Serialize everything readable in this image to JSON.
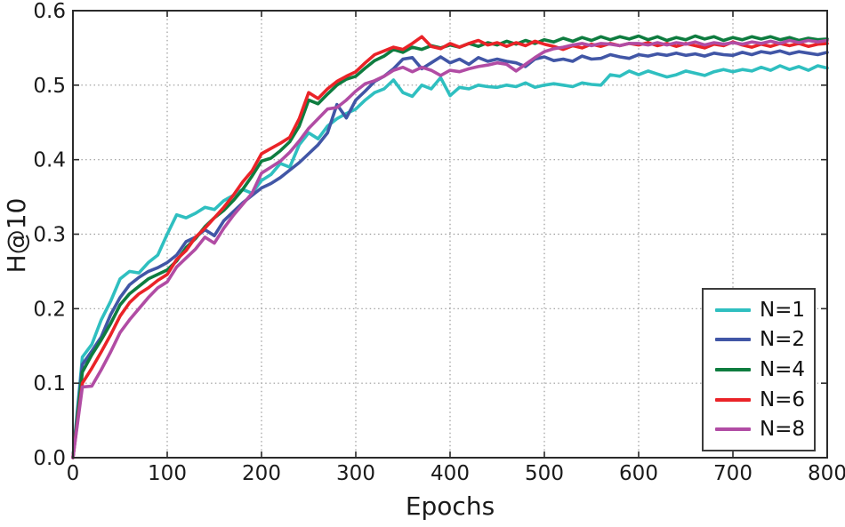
{
  "chart_data": {
    "type": "line",
    "title": "",
    "xlabel": "Epochs",
    "ylabel": "H@10",
    "xlim": [
      0,
      800
    ],
    "ylim": [
      0.0,
      0.6
    ],
    "x_ticks": [
      0,
      100,
      200,
      300,
      400,
      500,
      600,
      700,
      800
    ],
    "x_tick_labels": [
      "0",
      "100",
      "200",
      "300",
      "400",
      "500",
      "600",
      "700",
      "800"
    ],
    "y_ticks": [
      0.0,
      0.1,
      0.2,
      0.3,
      0.4,
      0.5,
      0.6
    ],
    "y_tick_labels": [
      "0.0",
      "0.1",
      "0.2",
      "0.3",
      "0.4",
      "0.5",
      "0.6"
    ],
    "grid": "dotted",
    "legend_position": "lower right",
    "axis_color": "#2b2b2b",
    "grid_color": "#9a9a9a",
    "epochs": [
      0,
      10,
      20,
      30,
      40,
      50,
      60,
      70,
      80,
      90,
      100,
      110,
      120,
      130,
      140,
      150,
      160,
      170,
      180,
      190,
      200,
      210,
      220,
      230,
      240,
      250,
      260,
      270,
      280,
      290,
      300,
      310,
      320,
      330,
      340,
      350,
      360,
      370,
      380,
      390,
      400,
      410,
      420,
      430,
      440,
      450,
      460,
      470,
      480,
      490,
      500,
      510,
      520,
      530,
      540,
      550,
      560,
      570,
      580,
      590,
      600,
      610,
      620,
      630,
      640,
      650,
      660,
      670,
      680,
      690,
      700,
      710,
      720,
      730,
      740,
      750,
      760,
      770,
      780,
      790,
      800
    ],
    "series": [
      {
        "name": "N=1",
        "color": "#2fbfc0",
        "values": [
          0.0,
          0.135,
          0.152,
          0.185,
          0.21,
          0.24,
          0.25,
          0.248,
          0.262,
          0.272,
          0.3,
          0.326,
          0.322,
          0.328,
          0.336,
          0.333,
          0.345,
          0.352,
          0.36,
          0.355,
          0.372,
          0.38,
          0.395,
          0.39,
          0.42,
          0.436,
          0.428,
          0.445,
          0.455,
          0.462,
          0.468,
          0.48,
          0.49,
          0.495,
          0.507,
          0.49,
          0.485,
          0.5,
          0.495,
          0.51,
          0.486,
          0.497,
          0.495,
          0.5,
          0.498,
          0.497,
          0.5,
          0.498,
          0.503,
          0.497,
          0.5,
          0.502,
          0.5,
          0.498,
          0.503,
          0.501,
          0.5,
          0.514,
          0.512,
          0.519,
          0.514,
          0.519,
          0.515,
          0.511,
          0.514,
          0.519,
          0.516,
          0.513,
          0.518,
          0.521,
          0.518,
          0.521,
          0.519,
          0.524,
          0.52,
          0.526,
          0.521,
          0.525,
          0.52,
          0.526,
          0.523
        ]
      },
      {
        "name": "N=2",
        "color": "#4156a6",
        "values": [
          0.0,
          0.125,
          0.143,
          0.162,
          0.192,
          0.215,
          0.232,
          0.242,
          0.25,
          0.255,
          0.262,
          0.272,
          0.29,
          0.296,
          0.306,
          0.298,
          0.318,
          0.33,
          0.342,
          0.352,
          0.362,
          0.368,
          0.376,
          0.386,
          0.396,
          0.408,
          0.42,
          0.436,
          0.474,
          0.456,
          0.48,
          0.492,
          0.505,
          0.512,
          0.522,
          0.535,
          0.537,
          0.522,
          0.53,
          0.538,
          0.53,
          0.535,
          0.528,
          0.537,
          0.532,
          0.535,
          0.532,
          0.53,
          0.525,
          0.535,
          0.538,
          0.533,
          0.535,
          0.532,
          0.539,
          0.535,
          0.536,
          0.541,
          0.538,
          0.536,
          0.541,
          0.539,
          0.542,
          0.54,
          0.543,
          0.54,
          0.542,
          0.539,
          0.543,
          0.541,
          0.54,
          0.544,
          0.541,
          0.545,
          0.543,
          0.546,
          0.542,
          0.545,
          0.543,
          0.541,
          0.544
        ]
      },
      {
        "name": "N=4",
        "color": "#0e7c3f",
        "values": [
          0.0,
          0.115,
          0.138,
          0.158,
          0.18,
          0.205,
          0.22,
          0.23,
          0.24,
          0.246,
          0.252,
          0.264,
          0.282,
          0.294,
          0.31,
          0.322,
          0.332,
          0.345,
          0.36,
          0.378,
          0.398,
          0.402,
          0.412,
          0.424,
          0.445,
          0.48,
          0.475,
          0.488,
          0.5,
          0.508,
          0.512,
          0.523,
          0.533,
          0.539,
          0.548,
          0.544,
          0.551,
          0.548,
          0.553,
          0.55,
          0.554,
          0.551,
          0.556,
          0.552,
          0.557,
          0.554,
          0.559,
          0.555,
          0.56,
          0.556,
          0.561,
          0.558,
          0.563,
          0.559,
          0.564,
          0.56,
          0.565,
          0.561,
          0.565,
          0.562,
          0.566,
          0.561,
          0.565,
          0.56,
          0.564,
          0.561,
          0.566,
          0.562,
          0.565,
          0.56,
          0.564,
          0.561,
          0.565,
          0.562,
          0.565,
          0.561,
          0.564,
          0.56,
          0.563,
          0.561,
          0.562
        ]
      },
      {
        "name": "N=6",
        "color": "#ea2328",
        "values": [
          0.0,
          0.1,
          0.12,
          0.142,
          0.165,
          0.19,
          0.208,
          0.22,
          0.228,
          0.238,
          0.246,
          0.266,
          0.278,
          0.296,
          0.308,
          0.322,
          0.336,
          0.352,
          0.37,
          0.385,
          0.408,
          0.415,
          0.422,
          0.43,
          0.455,
          0.49,
          0.482,
          0.495,
          0.505,
          0.512,
          0.518,
          0.53,
          0.541,
          0.546,
          0.551,
          0.548,
          0.556,
          0.565,
          0.552,
          0.549,
          0.556,
          0.551,
          0.556,
          0.56,
          0.554,
          0.557,
          0.552,
          0.557,
          0.553,
          0.559,
          0.555,
          0.552,
          0.548,
          0.553,
          0.55,
          0.555,
          0.552,
          0.556,
          0.553,
          0.556,
          0.554,
          0.557,
          0.553,
          0.556,
          0.552,
          0.556,
          0.553,
          0.55,
          0.555,
          0.553,
          0.558,
          0.554,
          0.551,
          0.555,
          0.552,
          0.556,
          0.553,
          0.556,
          0.552,
          0.555,
          0.556
        ]
      },
      {
        "name": "N=8",
        "color": "#b14ca4",
        "values": [
          0.0,
          0.095,
          0.096,
          0.118,
          0.142,
          0.168,
          0.185,
          0.2,
          0.215,
          0.228,
          0.236,
          0.256,
          0.268,
          0.28,
          0.296,
          0.288,
          0.308,
          0.325,
          0.34,
          0.355,
          0.382,
          0.39,
          0.398,
          0.41,
          0.425,
          0.442,
          0.455,
          0.468,
          0.47,
          0.48,
          0.492,
          0.502,
          0.506,
          0.512,
          0.52,
          0.524,
          0.518,
          0.524,
          0.52,
          0.513,
          0.52,
          0.518,
          0.522,
          0.525,
          0.527,
          0.53,
          0.528,
          0.519,
          0.528,
          0.537,
          0.545,
          0.549,
          0.551,
          0.554,
          0.556,
          0.553,
          0.556,
          0.555,
          0.553,
          0.556,
          0.556,
          0.554,
          0.557,
          0.554,
          0.557,
          0.555,
          0.558,
          0.554,
          0.557,
          0.555,
          0.557,
          0.555,
          0.558,
          0.556,
          0.559,
          0.556,
          0.56,
          0.557,
          0.56,
          0.558,
          0.56
        ]
      }
    ],
    "legend_entries": [
      "N=1",
      "N=2",
      "N=4",
      "N=6",
      "N=8"
    ]
  }
}
